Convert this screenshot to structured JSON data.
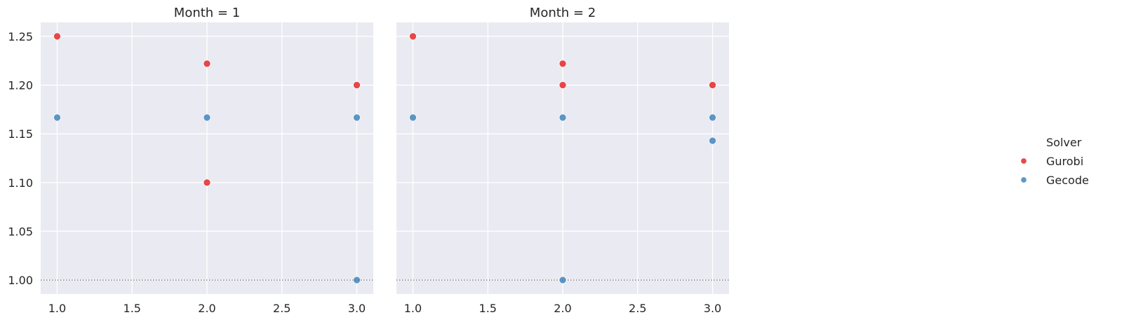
{
  "chart_data": {
    "type": "scatter",
    "facet_variable": "Month",
    "facets": [
      {
        "title": "Month = 1",
        "series": [
          {
            "name": "Gurobi",
            "color": "#e41a1c",
            "points": [
              [
                1.0,
                1.25
              ],
              [
                2.0,
                1.222
              ],
              [
                2.0,
                1.1
              ],
              [
                3.0,
                1.2
              ]
            ]
          },
          {
            "name": "Gecode",
            "color": "#377eb8",
            "points": [
              [
                1.0,
                1.1667
              ],
              [
                2.0,
                1.1667
              ],
              [
                3.0,
                1.1667
              ],
              [
                3.0,
                1.0
              ]
            ]
          }
        ]
      },
      {
        "title": "Month = 2",
        "series": [
          {
            "name": "Gurobi",
            "color": "#e41a1c",
            "points": [
              [
                1.0,
                1.25
              ],
              [
                2.0,
                1.222
              ],
              [
                2.0,
                1.2
              ],
              [
                3.0,
                1.2
              ]
            ]
          },
          {
            "name": "Gecode",
            "color": "#377eb8",
            "points": [
              [
                1.0,
                1.1667
              ],
              [
                2.0,
                1.1667
              ],
              [
                2.0,
                1.0
              ],
              [
                3.0,
                1.1667
              ],
              [
                3.0,
                1.1429
              ]
            ]
          }
        ]
      }
    ],
    "x_ticks": [
      1.0,
      1.5,
      2.0,
      2.5,
      3.0
    ],
    "x_tick_labels": [
      "1.0",
      "1.5",
      "2.0",
      "2.5",
      "3.0"
    ],
    "y_ticks": [
      1.0,
      1.05,
      1.1,
      1.15,
      1.2,
      1.25
    ],
    "y_tick_labels": [
      "1.00",
      "1.05",
      "1.10",
      "1.15",
      "1.20",
      "1.25"
    ],
    "xlim": [
      0.89,
      3.11
    ],
    "ylim": [
      0.9857,
      1.2643
    ],
    "reference_line": {
      "y": 1.0,
      "style": "dotted"
    },
    "xlabel": "",
    "ylabel": "",
    "grid": true,
    "legend": {
      "title": "Solver",
      "entries": [
        "Gurobi",
        "Gecode"
      ],
      "placement": "right"
    }
  }
}
